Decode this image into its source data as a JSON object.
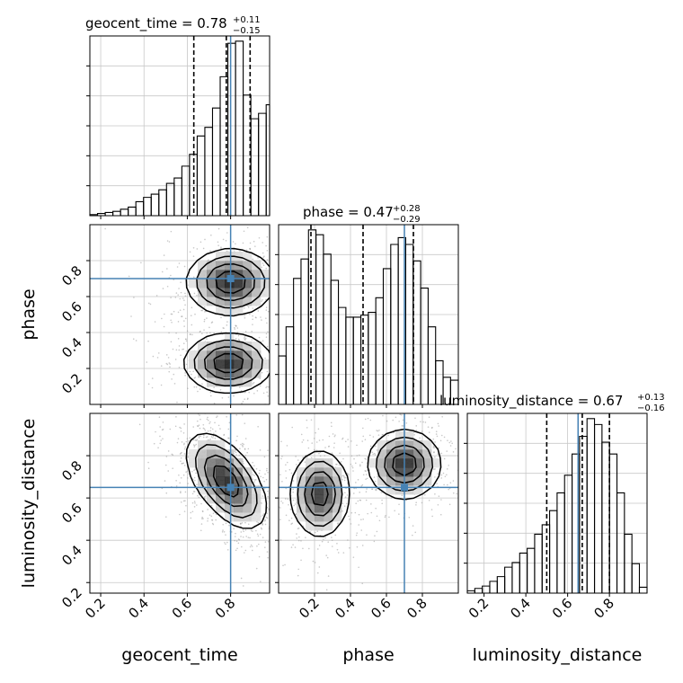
{
  "figure": {
    "parameters": [
      "geocent_time",
      "phase",
      "luminosity_distance"
    ],
    "x_axis_labels": [
      "geocent_time",
      "phase",
      "luminosity_distance"
    ],
    "y_axis_labels": [
      "phase",
      "luminosity_distance"
    ],
    "panel_titles": [
      {
        "param": "geocent_time",
        "label": "geocent_time = 0.78",
        "plus": "+0.11",
        "minus": "−0.15"
      },
      {
        "param": "phase",
        "label": "phase = 0.47",
        "plus": "+0.28",
        "minus": "−0.29"
      },
      {
        "param": "luminosity_distance",
        "label": "luminosity_distance = 0.67",
        "plus": "+0.13",
        "minus": "−0.16"
      }
    ]
  },
  "colors": {
    "truth": "#4682b4",
    "contour": "#000000",
    "hist": "#000000",
    "grid": "#c8c8c8",
    "points": "#9a9a9a"
  },
  "chart_data": {
    "type": "corner",
    "truths": {
      "geocent_time": 0.8,
      "phase": 0.7,
      "luminosity_distance": 0.65
    },
    "grid": true,
    "diagonal": [
      {
        "param": "geocent_time",
        "xlim": [
          0.15,
          0.98
        ],
        "xticks": [
          0.2,
          0.4,
          0.6,
          0.8
        ],
        "bin_edges": [
          0.15,
          0.1854,
          0.2208,
          0.2562,
          0.2916,
          0.327,
          0.3624,
          0.3978,
          0.4332,
          0.4686,
          0.504,
          0.5394,
          0.5748,
          0.6102,
          0.6456,
          0.681,
          0.7164,
          0.7518,
          0.7872,
          0.8226,
          0.858,
          0.8934,
          0.9288,
          0.9642,
          0.98
        ],
        "counts": [
          1,
          2,
          3,
          4,
          6,
          8,
          13,
          17,
          20,
          24,
          30,
          35,
          46,
          57,
          74,
          82,
          100,
          129,
          160,
          162,
          112,
          90,
          95,
          103
        ],
        "quantiles": [
          0.63,
          0.78,
          0.89
        ]
      },
      {
        "param": "phase",
        "xlim": [
          0.0,
          1.0
        ],
        "xticks": [
          0.2,
          0.4,
          0.6,
          0.8
        ],
        "bin_edges": [
          0.0,
          0.0416,
          0.0832,
          0.1248,
          0.1664,
          0.208,
          0.2496,
          0.2912,
          0.3328,
          0.3744,
          0.416,
          0.4576,
          0.4992,
          0.5408,
          0.5824,
          0.624,
          0.6656,
          0.7072,
          0.7488,
          0.7904,
          0.832,
          0.8736,
          0.9152,
          0.9568,
          1.0
        ],
        "counts": [
          50,
          80,
          130,
          150,
          180,
          175,
          155,
          128,
          100,
          90,
          90,
          92,
          95,
          110,
          140,
          165,
          172,
          165,
          148,
          120,
          80,
          45,
          28,
          25
        ],
        "quantiles": [
          0.18,
          0.47,
          0.75
        ]
      },
      {
        "param": "luminosity_distance",
        "xlim": [
          0.12,
          0.98
        ],
        "xticks": [
          0.2,
          0.4,
          0.6,
          0.8
        ],
        "bin_edges": [
          0.12,
          0.1558,
          0.1916,
          0.2274,
          0.2632,
          0.299,
          0.3348,
          0.3706,
          0.4064,
          0.4422,
          0.478,
          0.5138,
          0.5496,
          0.5854,
          0.6212,
          0.657,
          0.6928,
          0.7286,
          0.7644,
          0.8002,
          0.836,
          0.8718,
          0.9076,
          0.9434,
          0.98
        ],
        "counts": [
          2,
          4,
          6,
          10,
          14,
          22,
          26,
          34,
          38,
          50,
          58,
          70,
          85,
          100,
          118,
          133,
          148,
          143,
          128,
          118,
          85,
          50,
          25,
          5
        ],
        "quantiles": [
          0.5,
          0.67,
          0.8
        ]
      }
    ],
    "offdiagonal": [
      {
        "x": "geocent_time",
        "y": "phase",
        "xlim": [
          0.15,
          0.98
        ],
        "ylim": [
          0.0,
          1.0
        ],
        "xticks": [
          0.2,
          0.4,
          0.6,
          0.8
        ],
        "yticks": [
          0.2,
          0.4,
          0.6,
          0.8
        ],
        "peaks": [
          {
            "x": 0.8,
            "y": 0.68,
            "sx": 0.1,
            "sy": 0.09,
            "w": 1.0
          },
          {
            "x": 0.79,
            "y": 0.23,
            "sx": 0.1,
            "sy": 0.08,
            "w": 1.0
          }
        ]
      },
      {
        "x": "geocent_time",
        "y": "luminosity_distance",
        "xlim": [
          0.15,
          0.98
        ],
        "ylim": [
          0.15,
          1.0
        ],
        "xticks": [
          0.2,
          0.4,
          0.6,
          0.8
        ],
        "yticks": [
          0.2,
          0.4,
          0.6,
          0.8
        ],
        "peaks": [
          {
            "x": 0.78,
            "y": 0.68,
            "sx": 0.09,
            "sy": 0.11,
            "w": 1.0,
            "rho": -0.55
          }
        ]
      },
      {
        "x": "phase",
        "y": "luminosity_distance",
        "xlim": [
          0.0,
          1.0
        ],
        "ylim": [
          0.15,
          1.0
        ],
        "xticks": [
          0.2,
          0.4,
          0.6,
          0.8
        ],
        "yticks": [
          0.2,
          0.4,
          0.6,
          0.8
        ],
        "peaks": [
          {
            "x": 0.23,
            "y": 0.62,
            "sx": 0.08,
            "sy": 0.1,
            "w": 1.0
          },
          {
            "x": 0.7,
            "y": 0.76,
            "sx": 0.1,
            "sy": 0.08,
            "w": 1.05
          }
        ]
      }
    ]
  }
}
